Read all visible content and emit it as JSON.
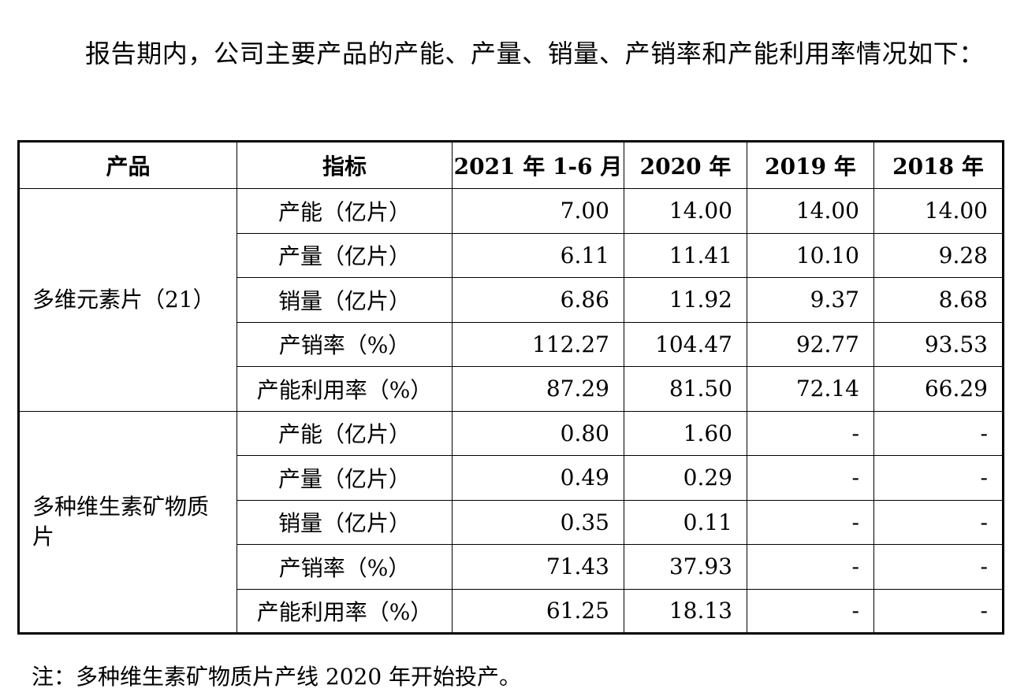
{
  "intro": {
    "text": "报告期内，公司主要产品的产能、产量、销量、产销率和产能利用率情况如下："
  },
  "table": {
    "headers": [
      "产品",
      "指标",
      "2021 年 1-6 月",
      "2020 年",
      "2019 年",
      "2018 年"
    ],
    "groups": [
      {
        "product": "多维元素片（21）",
        "rows": [
          {
            "indicator": "产能（亿片）",
            "values": [
              "7.00",
              "14.00",
              "14.00",
              "14.00"
            ]
          },
          {
            "indicator": "产量（亿片）",
            "values": [
              "6.11",
              "11.41",
              "10.10",
              "9.28"
            ]
          },
          {
            "indicator": "销量（亿片）",
            "values": [
              "6.86",
              "11.92",
              "9.37",
              "8.68"
            ]
          },
          {
            "indicator": "产销率（%）",
            "values": [
              "112.27",
              "104.47",
              "92.77",
              "93.53"
            ]
          },
          {
            "indicator": "产能利用率（%）",
            "values": [
              "87.29",
              "81.50",
              "72.14",
              "66.29"
            ]
          }
        ]
      },
      {
        "product": "多种维生素矿物质片",
        "rows": [
          {
            "indicator": "产能（亿片）",
            "values": [
              "0.80",
              "1.60",
              "-",
              "-"
            ]
          },
          {
            "indicator": "产量（亿片）",
            "values": [
              "0.49",
              "0.29",
              "-",
              "-"
            ]
          },
          {
            "indicator": "销量（亿片）",
            "values": [
              "0.35",
              "0.11",
              "-",
              "-"
            ]
          },
          {
            "indicator": "产销率（%）",
            "values": [
              "71.43",
              "37.93",
              "-",
              "-"
            ]
          },
          {
            "indicator": "产能利用率（%）",
            "values": [
              "61.25",
              "18.13",
              "-",
              "-"
            ]
          }
        ]
      }
    ]
  },
  "note": {
    "text": "注：多种维生素矿物质片产线 2020 年开始投产。"
  }
}
